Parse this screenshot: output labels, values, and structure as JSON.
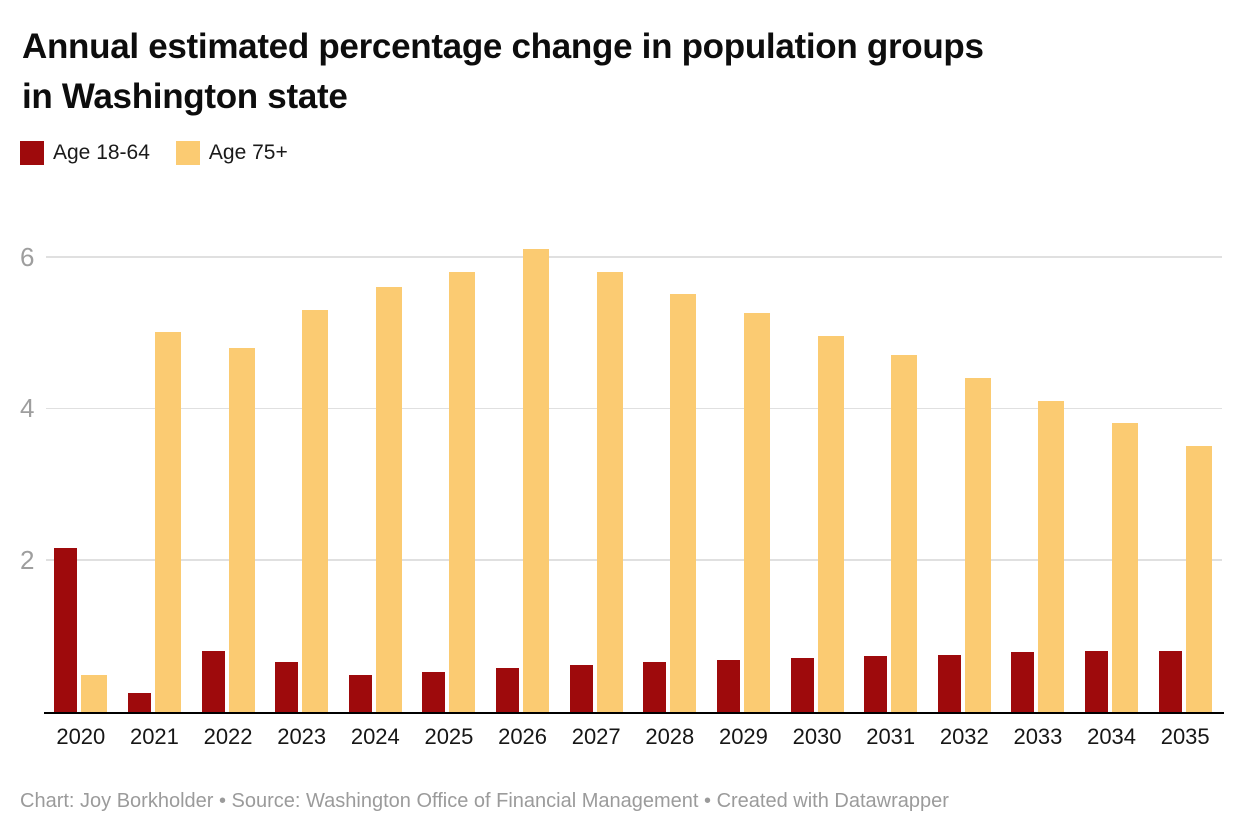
{
  "header": {
    "title_line1": "Annual estimated percentage change in population groups",
    "title_line2": "in Washington state"
  },
  "legend": [
    {
      "label": "Age 18-64",
      "color": "#9e0a0c"
    },
    {
      "label": "Age 75+",
      "color": "#fbcb72"
    }
  ],
  "chart_data": {
    "type": "bar",
    "title": "Annual estimated percentage change in population groups in Washington state",
    "categories": [
      "2020",
      "2021",
      "2022",
      "2023",
      "2024",
      "2025",
      "2026",
      "2027",
      "2028",
      "2029",
      "2030",
      "2031",
      "2032",
      "2033",
      "2034",
      "2035"
    ],
    "series": [
      {
        "name": "Age 18-64",
        "color": "#9e0a0c",
        "values": [
          2.15,
          0.25,
          0.8,
          0.65,
          0.48,
          0.52,
          0.58,
          0.62,
          0.65,
          0.68,
          0.7,
          0.73,
          0.75,
          0.78,
          0.8,
          0.8
        ]
      },
      {
        "name": "Age 75+",
        "color": "#fbcb72",
        "values": [
          0.48,
          5.0,
          4.8,
          5.3,
          5.6,
          5.8,
          6.1,
          5.8,
          5.5,
          5.25,
          4.95,
          4.7,
          4.4,
          4.1,
          3.8,
          3.5
        ]
      }
    ],
    "xlabel": "",
    "ylabel": "",
    "ylim": [
      0,
      6.33
    ],
    "gridlines": [
      2,
      4,
      6
    ],
    "grid": "horizontal",
    "legend_position": "top-left",
    "units": "percent change"
  },
  "colors": {
    "background": "#ffffff",
    "gridline": "#e0e0e0",
    "axis_line": "#000000",
    "y_tick_label": "#9e9e9e",
    "x_tick_label": "#161616"
  },
  "footer": {
    "credit": "Chart: Joy Borkholder • Source: Washington Office of Financial Management • Created with Datawrapper"
  }
}
